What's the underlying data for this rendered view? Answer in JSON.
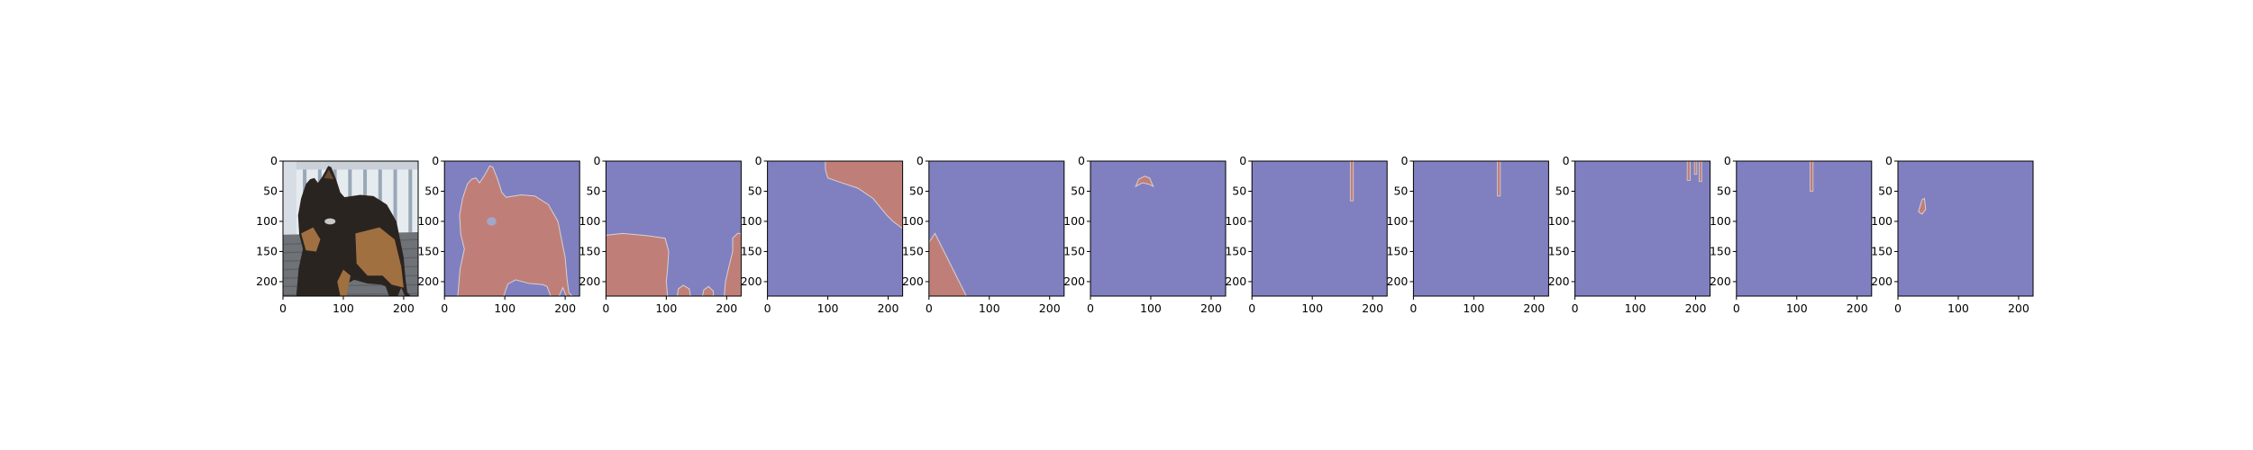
{
  "chart_data": {
    "type": "image_grid",
    "panel_count": 11,
    "image_size": [
      224,
      224
    ],
    "xlim": [
      0,
      224
    ],
    "ylim": [
      224,
      0
    ],
    "x_ticks": [
      0,
      100,
      200
    ],
    "y_ticks": [
      0,
      50,
      100,
      150,
      200
    ],
    "background_color": "#8080c0",
    "mask_color": "#c07e78",
    "photo_colors": {
      "sky": "#e6ebf0",
      "railing": "#9aa8b6",
      "floor": "#6f7378",
      "dog_dark": "#2a2420",
      "dog_tan": "#a07040"
    },
    "panels": [
      {
        "id": "input",
        "kind": "photo",
        "description": "dog",
        "x_tick_labels": [
          "0",
          "100",
          "200"
        ],
        "y_tick_labels": [
          "0",
          "50",
          "100",
          "150",
          "200"
        ]
      },
      {
        "id": "mask-1",
        "kind": "mask",
        "segment": "dog body",
        "x_tick_labels": [
          "0",
          "100",
          "200"
        ],
        "y_tick_labels": [
          "0",
          "50",
          "100",
          "150",
          "200"
        ]
      },
      {
        "id": "mask-2",
        "kind": "mask",
        "segment": "floor",
        "x_tick_labels": [
          "0",
          "100",
          "200"
        ],
        "y_tick_labels": [
          "0",
          "50",
          "100",
          "150",
          "200"
        ]
      },
      {
        "id": "mask-3",
        "kind": "mask",
        "segment": "top right wall",
        "x_tick_labels": [
          "0",
          "100",
          "200"
        ],
        "y_tick_labels": [
          "0",
          "50",
          "100",
          "150",
          "200"
        ]
      },
      {
        "id": "mask-4",
        "kind": "mask",
        "segment": "lower left corner",
        "x_tick_labels": [
          "0",
          "100",
          "200"
        ],
        "y_tick_labels": [
          "0",
          "50",
          "100",
          "150",
          "200"
        ]
      },
      {
        "id": "mask-5",
        "kind": "mask",
        "segment": "ear tip",
        "x_tick_labels": [
          "0",
          "100",
          "200"
        ],
        "y_tick_labels": [
          "0",
          "50",
          "100",
          "150",
          "200"
        ]
      },
      {
        "id": "mask-6",
        "kind": "mask",
        "segment": "railing post",
        "x_tick_labels": [
          "0",
          "100",
          "200"
        ],
        "y_tick_labels": [
          "0",
          "50",
          "100",
          "150",
          "200"
        ]
      },
      {
        "id": "mask-7",
        "kind": "mask",
        "segment": "railing post",
        "x_tick_labels": [
          "0",
          "100",
          "200"
        ],
        "y_tick_labels": [
          "0",
          "50",
          "100",
          "150",
          "200"
        ]
      },
      {
        "id": "mask-8",
        "kind": "mask",
        "segment": "top right posts",
        "x_tick_labels": [
          "0",
          "100",
          "200"
        ],
        "y_tick_labels": [
          "0",
          "50",
          "100",
          "150",
          "200"
        ]
      },
      {
        "id": "mask-9",
        "kind": "mask",
        "segment": "railing post",
        "x_tick_labels": [
          "0",
          "100",
          "200"
        ],
        "y_tick_labels": [
          "0",
          "50",
          "100",
          "150",
          "200"
        ]
      },
      {
        "id": "mask-10",
        "kind": "mask",
        "segment": "small blob",
        "x_tick_labels": [
          "0",
          "100",
          "200"
        ],
        "y_tick_labels": [
          "0",
          "50",
          "100",
          "150",
          "200"
        ]
      }
    ]
  }
}
